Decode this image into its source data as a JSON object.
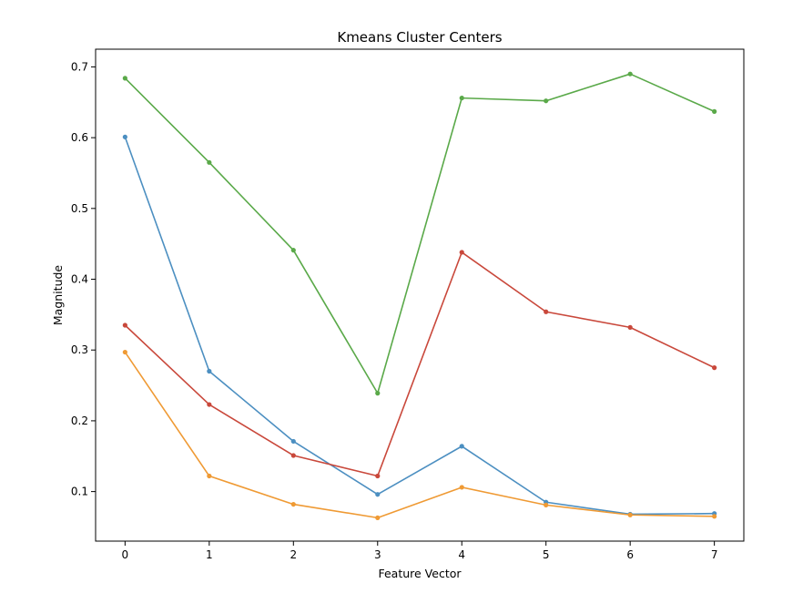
{
  "chart_data": {
    "type": "line",
    "title": "Kmeans Cluster Centers",
    "xlabel": "Feature Vector",
    "ylabel": "Magnitude",
    "x": [
      0,
      1,
      2,
      3,
      4,
      5,
      6,
      7
    ],
    "x_ticks": [
      0,
      1,
      2,
      3,
      4,
      5,
      6,
      7
    ],
    "y_ticks": [
      0.1,
      0.2,
      0.3,
      0.4,
      0.5,
      0.6,
      0.7
    ],
    "xlim": [
      -0.35,
      7.35
    ],
    "ylim": [
      0.03,
      0.725
    ],
    "grid": false,
    "legend": "none",
    "series": [
      {
        "color": "#4c8fc1",
        "values": [
          0.601,
          0.27,
          0.171,
          0.096,
          0.164,
          0.085,
          0.068,
          0.069
        ]
      },
      {
        "color": "#ef9a34",
        "values": [
          0.297,
          0.122,
          0.082,
          0.063,
          0.106,
          0.081,
          0.067,
          0.065
        ]
      },
      {
        "color": "#5aa949",
        "values": [
          0.684,
          0.565,
          0.441,
          0.239,
          0.656,
          0.652,
          0.69,
          0.637
        ]
      },
      {
        "color": "#c9483b",
        "values": [
          0.335,
          0.223,
          0.151,
          0.122,
          0.438,
          0.354,
          0.332,
          0.275
        ]
      }
    ]
  }
}
